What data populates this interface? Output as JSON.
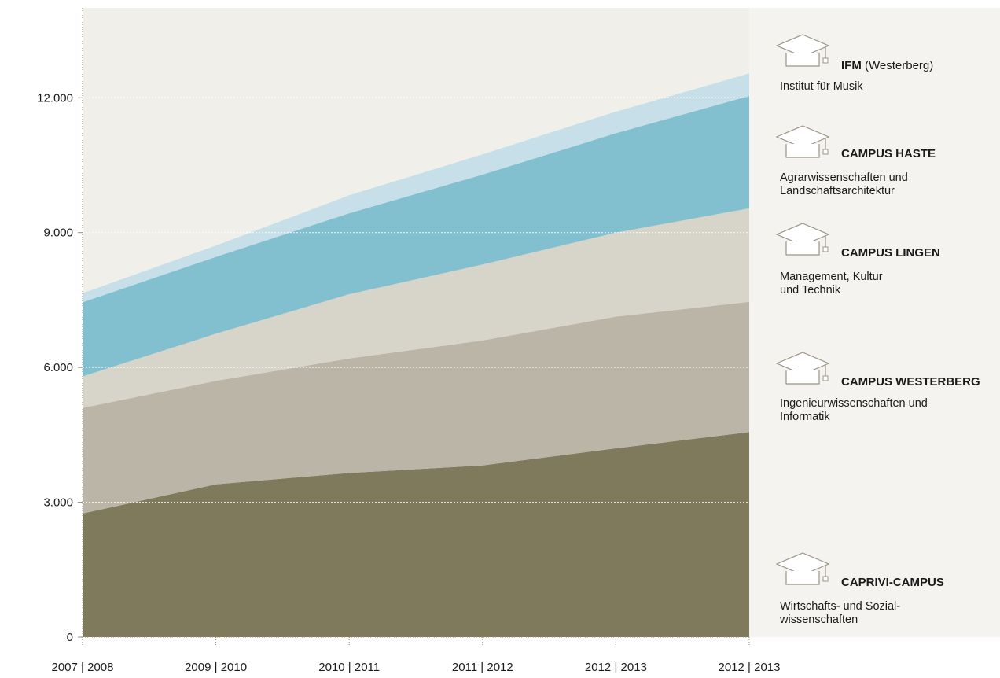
{
  "chart_data": {
    "type": "area",
    "stacked": true,
    "x_labels": [
      "2007 | 2008",
      "2009 | 2010",
      "2010 | 2011",
      "2011 | 2012",
      "2012 | 2013",
      "2012 | 2013"
    ],
    "y_ticks": [
      0,
      3000,
      6000,
      9000,
      12000
    ],
    "y_tick_labels": [
      "0",
      "3.000",
      "6.000",
      "9.000",
      "12.000"
    ],
    "ylim": [
      0,
      14000
    ],
    "grid": true,
    "legend_placement": "right",
    "series": [
      {
        "name": "CAPRIVI-CAMPUS",
        "description": "Wirtschafts- und Sozial-\nwissenschaften",
        "color": "#807a5c",
        "values": [
          2750,
          3400,
          3650,
          3820,
          4200,
          4560
        ]
      },
      {
        "name": "CAMPUS WESTERBERG",
        "description": "Ingenieurwissenschaften und\nInformatik",
        "color": "#bbb5a7",
        "values": [
          2350,
          2300,
          2550,
          2780,
          2930,
          2900
        ]
      },
      {
        "name": "CAMPUS LINGEN",
        "description": "Management, Kultur\nund Technik",
        "color": "#d7d4c9",
        "values": [
          700,
          1050,
          1430,
          1690,
          1870,
          2080
        ]
      },
      {
        "name": "CAMPUS HASTE",
        "description": "Agrarwissenschaften und\nLandschaftsarchitektur",
        "color": "#82bfcf",
        "values": [
          1650,
          1710,
          1800,
          2000,
          2210,
          2500
        ]
      },
      {
        "name": "IFM",
        "name_suffix": " (Westerberg)",
        "description": "Institut für Musik",
        "color": "#c6dfe8",
        "values": [
          200,
          250,
          400,
          450,
          480,
          500
        ]
      }
    ]
  },
  "colors": {
    "plot_background": "#f1efea",
    "legend_background": "#f4f3f0",
    "grid": "#ffffff",
    "axis": "#8a8a7a",
    "icon_stroke": "#9a9484"
  }
}
